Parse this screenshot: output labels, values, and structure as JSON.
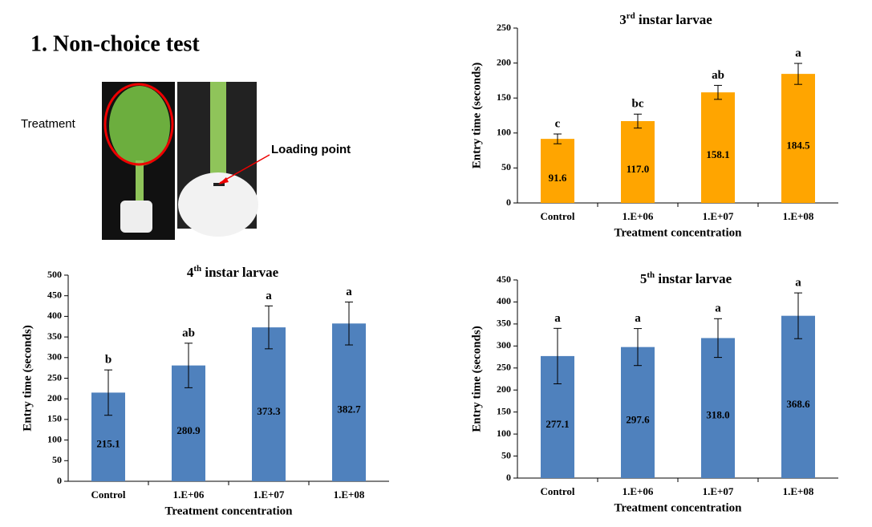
{
  "heading": "1.  Non-choice test",
  "photo_label": "Treatment",
  "callout": "Loading point",
  "chart_data": [
    {
      "type": "bar",
      "title": "3rd instar larvae",
      "categories": [
        "Control",
        "1.E+06",
        "1.E+07",
        "1.E+08"
      ],
      "values": [
        91.6,
        117.0,
        158.1,
        184.5
      ],
      "value_labels": [
        "91.6",
        "117.0",
        "158.1",
        "184.5"
      ],
      "errors": [
        7,
        10,
        10,
        15
      ],
      "significance": [
        "c",
        "bc",
        "ab",
        "a"
      ],
      "color": "#ffa500",
      "x_label": "Treatment concentration",
      "y_label": "Entry time (seconds)",
      "ylim": [
        0,
        250
      ],
      "yticks": [
        0,
        50,
        100,
        150,
        200,
        250
      ]
    },
    {
      "type": "bar",
      "title": "4th instar larvae",
      "categories": [
        "Control",
        "1.E+06",
        "1.E+07",
        "1.E+08"
      ],
      "values": [
        215.1,
        280.9,
        373.3,
        382.7
      ],
      "value_labels": [
        "215.1",
        "280.9",
        "373.3",
        "382.7"
      ],
      "errors": [
        55,
        54,
        52,
        52
      ],
      "significance": [
        "b",
        "ab",
        "a",
        "a"
      ],
      "color": "#4f81bd",
      "x_label": "Treatment concentration",
      "y_label": "Entry time (seconds)",
      "ylim": [
        0,
        500
      ],
      "yticks": [
        0,
        50,
        100,
        150,
        200,
        250,
        300,
        350,
        400,
        450,
        500
      ]
    },
    {
      "type": "bar",
      "title": "5th instar larvae",
      "categories": [
        "Control",
        "1.E+06",
        "1.E+07",
        "1.E+08"
      ],
      "values": [
        277.1,
        297.6,
        318.0,
        368.6
      ],
      "value_labels": [
        "277.1",
        "297.6",
        "318.0",
        "368.6"
      ],
      "errors": [
        63,
        42,
        44,
        52
      ],
      "significance": [
        "a",
        "a",
        "a",
        "a"
      ],
      "color": "#4f81bd",
      "x_label": "Treatment concentration",
      "y_label": "Entry time (seconds)",
      "ylim": [
        0,
        450
      ],
      "yticks": [
        0,
        50,
        100,
        150,
        200,
        250,
        300,
        350,
        400,
        450
      ]
    }
  ]
}
